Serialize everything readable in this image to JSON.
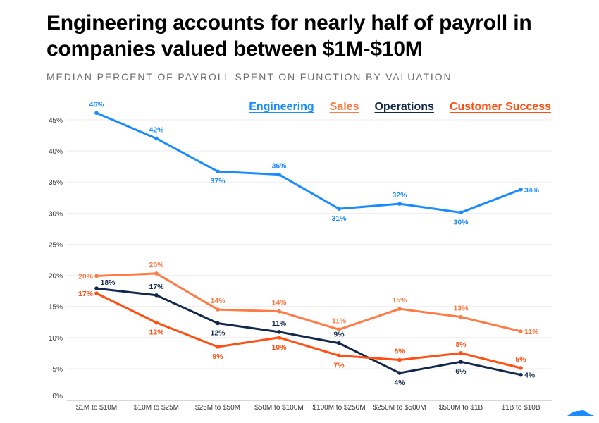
{
  "header": {
    "title": "Engineering accounts for nearly half of payroll in companies valued between $1M-$10M",
    "subtitle": "MEDIAN PERCENT OF PAYROLL SPENT ON FUNCTION BY VALUATION"
  },
  "chart_data": {
    "type": "line",
    "title": "Engineering accounts for nearly half of payroll in companies valued between $1M-$10M",
    "subtitle": "MEDIAN PERCENT OF PAYROLL SPENT ON FUNCTION BY VALUATION",
    "categories": [
      "$1M to $10M",
      "$10M to $25M",
      "$25M to $50M",
      "$50M to $100M",
      "$100M to $250M",
      "$250M to $500M",
      "$500M to $1B",
      "$1B to $10B"
    ],
    "yticks": [
      "0%",
      "5%",
      "10%",
      "15%",
      "20%",
      "25%",
      "30%",
      "35%",
      "40%",
      "45%"
    ],
    "ylim": [
      0,
      45
    ],
    "grid": true,
    "legend_position": "top-right",
    "series": [
      {
        "name": "Engineering",
        "color": "#1a8cff",
        "values": [
          46.1,
          42.0,
          36.7,
          36.2,
          30.7,
          31.5,
          30.1,
          33.8
        ],
        "labels": [
          "46%",
          "42%",
          "37%",
          "36%",
          "31%",
          "32%",
          "30%",
          "34%"
        ]
      },
      {
        "name": "Sales",
        "color": "#ff7a45",
        "values": [
          19.9,
          20.3,
          14.5,
          14.2,
          11.3,
          14.6,
          13.3,
          11.0
        ],
        "labels": [
          "20%",
          "20%",
          "14%",
          "14%",
          "11%",
          "15%",
          "13%",
          "11%"
        ]
      },
      {
        "name": "Operations",
        "color": "#13294b",
        "values": [
          17.9,
          16.8,
          12.3,
          10.9,
          9.1,
          4.3,
          6.1,
          4.0
        ],
        "labels": [
          "18%",
          "17%",
          "12%",
          "11%",
          "9%",
          "4%",
          "6%",
          "4%"
        ]
      },
      {
        "name": "Customer Success",
        "color": "#ff4f12",
        "values": [
          17.1,
          12.4,
          8.5,
          10.0,
          7.1,
          6.4,
          7.5,
          5.1
        ],
        "labels": [
          "17%",
          "12%",
          "9%",
          "10%",
          "7%",
          "6%",
          "8%",
          "5%"
        ]
      }
    ]
  },
  "logo": {
    "icon": "wave-logo-icon",
    "color": "#1a8cff"
  }
}
